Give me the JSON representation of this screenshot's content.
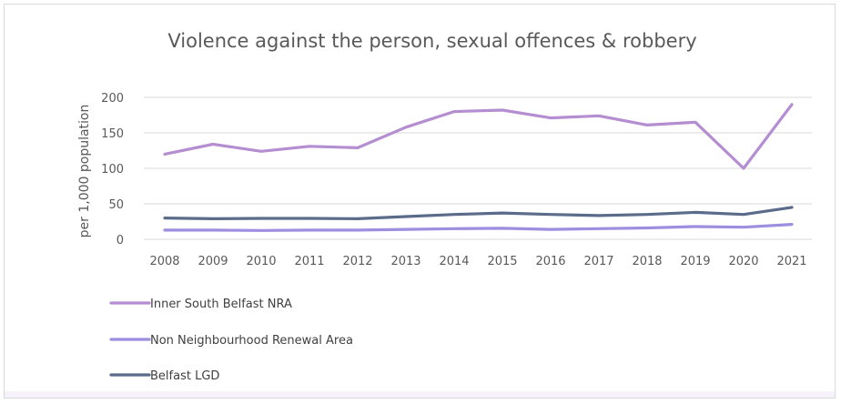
{
  "chart_data": {
    "type": "line",
    "title": "Violence against the person, sexual offences & robbery",
    "xlabel": "",
    "ylabel": "per 1,000 population",
    "ylim": [
      0,
      200
    ],
    "yticks": [
      0,
      50,
      100,
      150,
      200
    ],
    "grid": true,
    "legend_position": "bottom-left",
    "x": [
      "2008",
      "2009",
      "2010",
      "2011",
      "2012",
      "2013",
      "2014",
      "2015",
      "2016",
      "2017",
      "2018",
      "2019",
      "2020",
      "2021"
    ],
    "series": [
      {
        "name": "Inner South Belfast NRA",
        "color": "#b48ed0",
        "values": [
          120,
          134,
          124,
          131,
          129,
          158,
          180,
          182,
          171,
          174,
          161,
          165,
          100,
          190
        ]
      },
      {
        "name": "Non Neighbourhood Renewal Area",
        "color": "#9d8ee0",
        "values": [
          13,
          13,
          12.5,
          13,
          13,
          14,
          15,
          15.5,
          14,
          15,
          16,
          18,
          17,
          21
        ]
      },
      {
        "name": "Belfast LGD",
        "color": "#5b6b8a",
        "values": [
          30,
          29,
          29.5,
          29.5,
          29,
          32,
          35,
          37,
          35,
          33.5,
          35,
          38,
          35,
          45
        ]
      }
    ]
  }
}
